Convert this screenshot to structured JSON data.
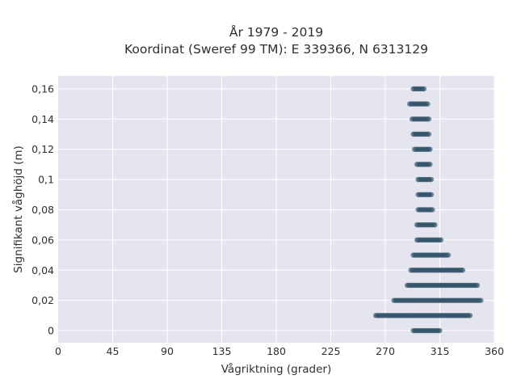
{
  "chart_data": {
    "type": "scatter",
    "title": "År 1979 - 2019",
    "subtitle": "Koordinat (Sweref 99 TM): E 339366, N 6313129",
    "xlabel": "Vågriktning (grader)",
    "ylabel": "Signifikant våghöjd (m)",
    "xlim": [
      0,
      360
    ],
    "ylim": [
      -0.008,
      0.1685
    ],
    "xticks": [
      0,
      45,
      90,
      135,
      180,
      225,
      270,
      315,
      360
    ],
    "xtick_labels": [
      "0",
      "45",
      "90",
      "135",
      "180",
      "225",
      "270",
      "315",
      "360"
    ],
    "yticks": [
      0,
      0.02,
      0.04,
      0.06,
      0.08,
      0.1,
      0.12,
      0.14,
      0.16
    ],
    "ytick_labels": [
      "0",
      "0,02",
      "0,04",
      "0,06",
      "0,08",
      "0,1",
      "0,12",
      "0,14",
      "0,16"
    ],
    "grid": true,
    "marker_color": "#2e5166",
    "background": "#e5e5f0",
    "bands": [
      {
        "y": 0.0,
        "x_min": 293,
        "x_max": 315
      },
      {
        "y": 0.01,
        "x_min": 262,
        "x_max": 340
      },
      {
        "y": 0.02,
        "x_min": 277,
        "x_max": 349
      },
      {
        "y": 0.03,
        "x_min": 288,
        "x_max": 346
      },
      {
        "y": 0.04,
        "x_min": 291,
        "x_max": 334
      },
      {
        "y": 0.05,
        "x_min": 293,
        "x_max": 322
      },
      {
        "y": 0.06,
        "x_min": 296,
        "x_max": 316
      },
      {
        "y": 0.07,
        "x_min": 296,
        "x_max": 311
      },
      {
        "y": 0.08,
        "x_min": 297,
        "x_max": 309
      },
      {
        "y": 0.09,
        "x_min": 297,
        "x_max": 308
      },
      {
        "y": 0.1,
        "x_min": 297,
        "x_max": 308
      },
      {
        "y": 0.11,
        "x_min": 296,
        "x_max": 307
      },
      {
        "y": 0.12,
        "x_min": 294,
        "x_max": 307
      },
      {
        "y": 0.13,
        "x_min": 293,
        "x_max": 306
      },
      {
        "y": 0.14,
        "x_min": 292,
        "x_max": 306
      },
      {
        "y": 0.15,
        "x_min": 290,
        "x_max": 305
      },
      {
        "y": 0.16,
        "x_min": 293,
        "x_max": 302
      }
    ]
  }
}
